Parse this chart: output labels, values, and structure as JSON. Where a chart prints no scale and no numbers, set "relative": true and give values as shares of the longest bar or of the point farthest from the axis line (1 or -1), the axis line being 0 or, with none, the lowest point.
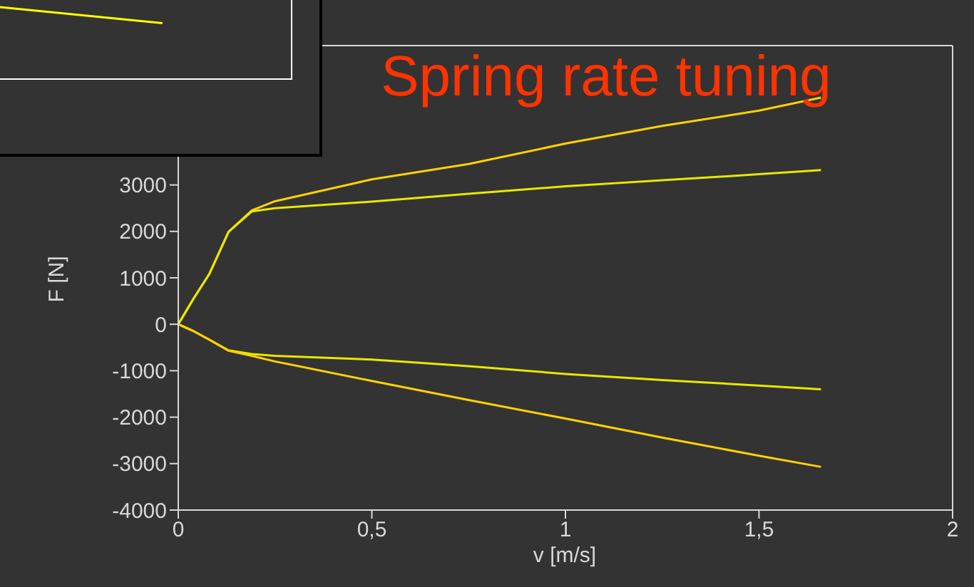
{
  "chart_data": [
    {
      "type": "line",
      "relative": true,
      "categories": [
        null,
        null
      ],
      "series": [
        {
          "color": "#ffff00",
          "values": [
            1,
            0
          ]
        }
      ]
    },
    {
      "type": "line",
      "title": "Spring rate tuning",
      "xlabel": "v [m/s]",
      "ylabel": "F [N]",
      "x": [
        0,
        0.04,
        0.08,
        0.13,
        0.19,
        0.25,
        0.5,
        0.75,
        1,
        1.25,
        1.5,
        1.66
      ],
      "xlim": [
        0,
        2
      ],
      "xticks": [
        0,
        {
          "value": 0.5,
          "label": "0,5"
        },
        1,
        {
          "value": 1.5,
          "label": "1,5"
        },
        2
      ],
      "ylim": [
        -4000,
        6000
      ],
      "yticks": [
        -4000,
        -3000,
        -2000,
        -1000,
        0,
        1000,
        2000,
        3000
      ],
      "series": [
        {
          "color": "#ffd200",
          "values": [
            0,
            560,
            1080,
            1990,
            2450,
            2650,
            3120,
            3450,
            3890,
            4270,
            4600,
            4880
          ]
        },
        {
          "color": "#e8e800",
          "values": [
            0,
            560,
            1080,
            1990,
            2430,
            2500,
            2640,
            2810,
            2970,
            3100,
            3230,
            3320
          ]
        },
        {
          "color": "#e8e800",
          "values": [
            0,
            -150,
            -330,
            -560,
            -640,
            -680,
            -760,
            -900,
            -1070,
            -1200,
            -1320,
            -1400
          ]
        },
        {
          "color": "#ffd200",
          "values": [
            0,
            -150,
            -330,
            -570,
            -680,
            -800,
            -1220,
            -1630,
            -2030,
            -2440,
            -2830,
            -3070
          ]
        }
      ]
    }
  ]
}
